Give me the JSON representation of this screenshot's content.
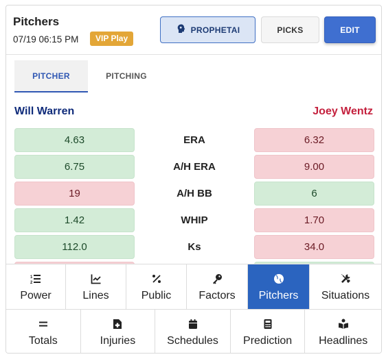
{
  "header": {
    "title": "Pitchers",
    "datetime": "07/19 06:15 PM",
    "badge": "VIP Play",
    "buttons": {
      "prophet": "PROPHETAI",
      "picks": "PICKS",
      "edit": "EDIT"
    }
  },
  "tabs": [
    {
      "label": "PITCHER",
      "active": true
    },
    {
      "label": "PITCHING",
      "active": false
    }
  ],
  "pitchers": {
    "left": "Will Warren",
    "right": "Joey Wentz"
  },
  "stats": [
    {
      "label": "ERA",
      "left": "4.63",
      "right": "6.32",
      "left_status": "good",
      "right_status": "bad"
    },
    {
      "label": "A/H ERA",
      "left": "6.75",
      "right": "9.00",
      "left_status": "good",
      "right_status": "bad"
    },
    {
      "label": "A/H BB",
      "left": "19",
      "right": "6",
      "left_status": "bad",
      "right_status": "good"
    },
    {
      "label": "WHIP",
      "left": "1.42",
      "right": "1.70",
      "left_status": "good",
      "right_status": "bad"
    },
    {
      "label": "Ks",
      "left": "112.0",
      "right": "34.0",
      "left_status": "good",
      "right_status": "bad"
    }
  ],
  "nav": {
    "row1": [
      {
        "label": "Power",
        "icon": "numbered-list-icon",
        "active": false
      },
      {
        "label": "Lines",
        "icon": "line-chart-icon",
        "active": false
      },
      {
        "label": "Public",
        "icon": "percent-icon",
        "active": false
      },
      {
        "label": "Factors",
        "icon": "key-icon",
        "active": false
      },
      {
        "label": "Pitchers",
        "icon": "baseball-icon",
        "active": true
      },
      {
        "label": "Situations",
        "icon": "tools-icon",
        "active": false
      }
    ],
    "row2": [
      {
        "label": "Totals",
        "icon": "equals-icon",
        "active": false
      },
      {
        "label": "Injuries",
        "icon": "medical-file-icon",
        "active": false
      },
      {
        "label": "Schedules",
        "icon": "calendar-icon",
        "active": false
      },
      {
        "label": "Prediction",
        "icon": "calculator-icon",
        "active": false
      },
      {
        "label": "Headlines",
        "icon": "reader-icon",
        "active": false
      }
    ]
  },
  "colors": {
    "accent": "#2b64bf",
    "good_bg": "#d3ecd7",
    "bad_bg": "#f6d1d5",
    "vip": "#e3a637",
    "left_name": "#0f2b7a",
    "right_name": "#c4203d"
  }
}
